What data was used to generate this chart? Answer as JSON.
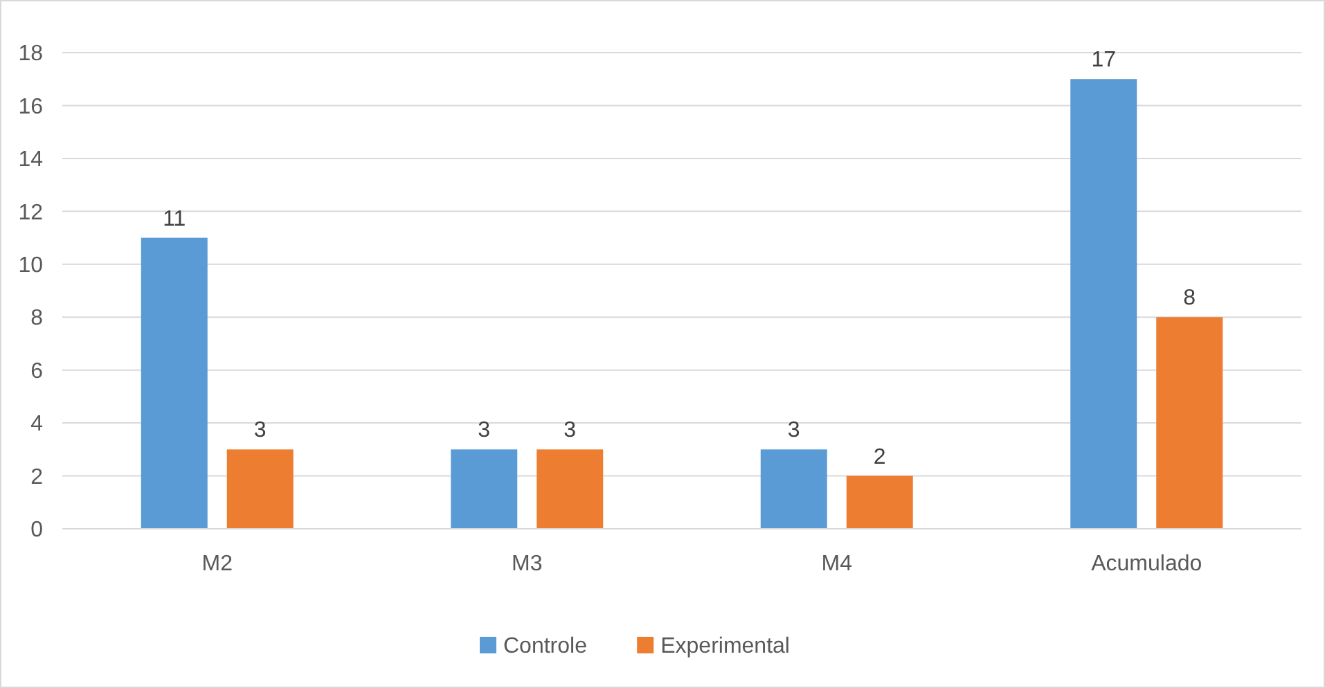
{
  "chart_data": {
    "type": "bar",
    "categories": [
      "M2",
      "M3",
      "M4",
      "Acumulado"
    ],
    "series": [
      {
        "name": "Controle",
        "color": "#5b9bd5",
        "values": [
          11,
          3,
          3,
          17
        ]
      },
      {
        "name": "Experimental",
        "color": "#ed7d31",
        "values": [
          3,
          3,
          2,
          8
        ]
      }
    ],
    "ylim": [
      0,
      18
    ],
    "yticks": [
      0,
      2,
      4,
      6,
      8,
      10,
      12,
      14,
      16,
      18
    ],
    "grid": "y",
    "legend": "bottom",
    "data_labels": true
  }
}
